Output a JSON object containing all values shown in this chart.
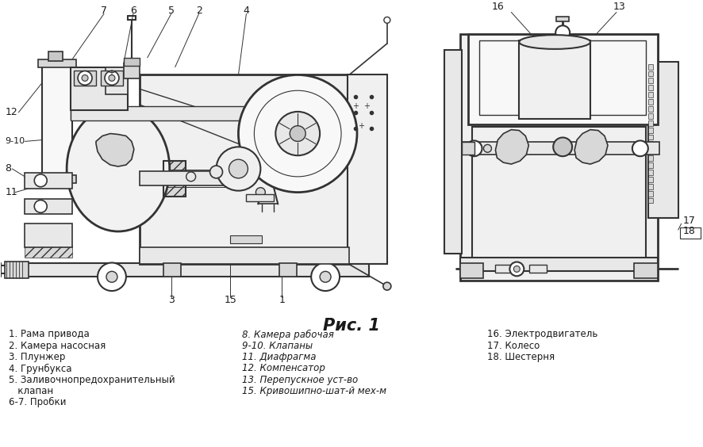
{
  "title": "Рис. 1",
  "background_color": "#f5f5f5",
  "text_color": "#1a1a1a",
  "line_color": "#333333",
  "legend_col1": [
    "1. Рама привода",
    "2. Камера насосная",
    "3. Плунжер",
    "4. Грунбукса",
    "5. Заливочнопредохранительный",
    "   клапан",
    "6-7. Пробки"
  ],
  "legend_col2": [
    "8. Камера рабочая",
    "9-10. Клапаны",
    "11. Диафрагма",
    "12. Компенсатор",
    "13. Перепускное уст-во",
    "15. Кривошипно-шат-й мех-м"
  ],
  "legend_col3": [
    "16. Электродвигатель",
    "17. Колесо",
    "18. Шестерня"
  ],
  "legend_fontsize": 8.5,
  "title_fontsize": 15
}
